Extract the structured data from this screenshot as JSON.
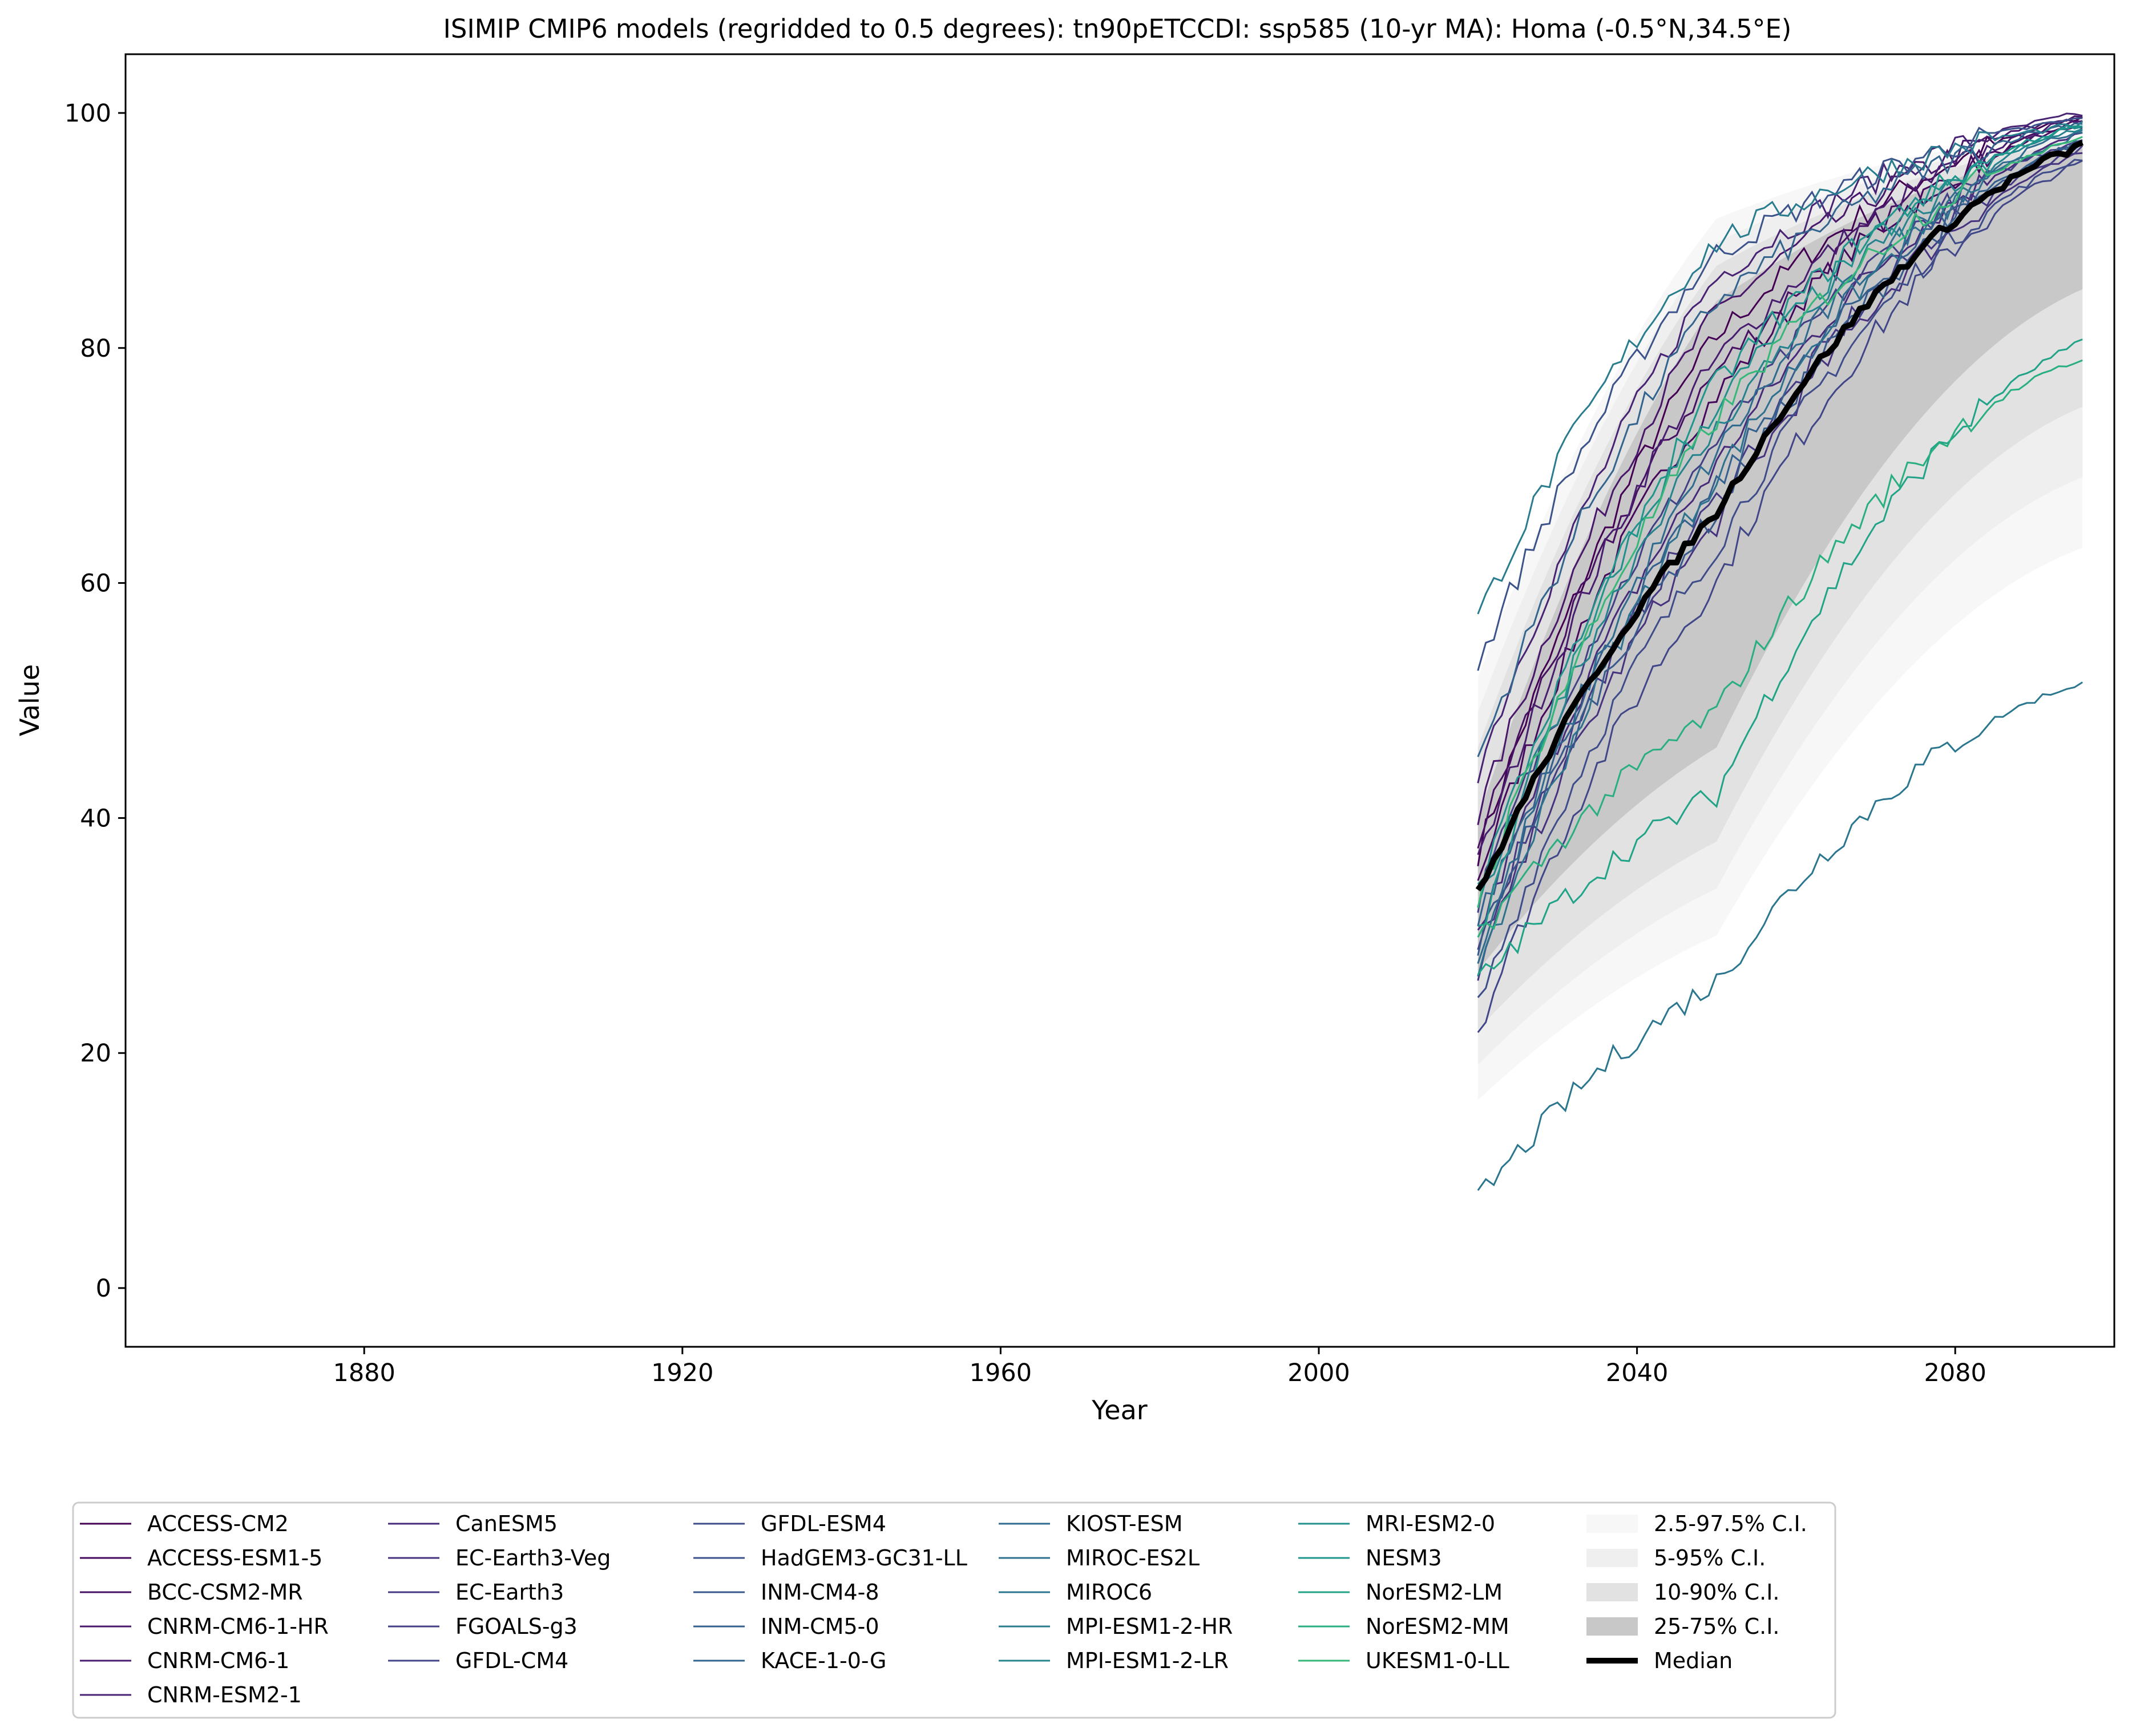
{
  "chart_data": {
    "type": "line",
    "title": "ISIMIP CMIP6 models (regridded to 0.5 degrees): tn90pETCCDI: ssp585 (10-yr MA): Homa (-0.5°N,34.5°E)",
    "xlabel": "Year",
    "ylabel": "Value",
    "xlim": [
      1850,
      2100
    ],
    "ylim": [
      -5,
      105
    ],
    "xticks": [
      1880,
      1920,
      1960,
      2000,
      2040,
      2080
    ],
    "yticks": [
      0,
      20,
      40,
      60,
      80,
      100
    ],
    "grid": false,
    "legend_position": "bottom",
    "x_range": [
      2020,
      2096
    ],
    "models": [
      {
        "name": "ACCESS-CM2",
        "color": "#440154",
        "start": 37,
        "mid": 81,
        "end": 99.6
      },
      {
        "name": "ACCESS-ESM1-5",
        "color": "#46085c",
        "start": 35,
        "mid": 76,
        "end": 99.3
      },
      {
        "name": "BCC-CSM2-MR",
        "color": "#471063",
        "start": 38,
        "mid": 78,
        "end": 99.0
      },
      {
        "name": "CNRM-CM6-1-HR",
        "color": "#481769",
        "start": 40,
        "mid": 83,
        "end": 99.8
      },
      {
        "name": "CNRM-CM6-1",
        "color": "#481d6f",
        "start": 36,
        "mid": 79,
        "end": 99.5
      },
      {
        "name": "CNRM-ESM2-1",
        "color": "#482374",
        "start": 44,
        "mid": 86,
        "end": 99.9
      },
      {
        "name": "CanESM5",
        "color": "#472a7a",
        "start": 30,
        "mid": 70,
        "end": 98.2
      },
      {
        "name": "EC-Earth3-Veg",
        "color": "#46327e",
        "start": 27,
        "mid": 65,
        "end": 96.5
      },
      {
        "name": "EC-Earth3",
        "color": "#443983",
        "start": 29,
        "mid": 67,
        "end": 97.0
      },
      {
        "name": "FGOALS-g3",
        "color": "#423f85",
        "start": 33,
        "mid": 72,
        "end": 97.8
      },
      {
        "name": "GFDL-CM4",
        "color": "#404688",
        "start": 22,
        "mid": 60,
        "end": 95.8
      },
      {
        "name": "GFDL-ESM4",
        "color": "#3e4c8a",
        "start": 24,
        "mid": 63,
        "end": 96.2
      },
      {
        "name": "HadGEM3-GC31-LL",
        "color": "#3b528b",
        "start": 53,
        "mid": 88,
        "end": 99.5
      },
      {
        "name": "INM-CM4-8",
        "color": "#38598c",
        "start": 29,
        "mid": 66,
        "end": 97.4
      },
      {
        "name": "INM-CM5-0",
        "color": "#355f8d",
        "start": 31,
        "mid": 68,
        "end": 97.6
      },
      {
        "name": "KACE-1-0-G",
        "color": "#32648e",
        "start": 45,
        "mid": 84,
        "end": 99.2
      },
      {
        "name": "KIOST-ESM",
        "color": "#2f6b8e",
        "start": 28,
        "mid": 71,
        "end": 98.6
      },
      {
        "name": "MIROC-ES2L",
        "color": "#2d718e",
        "start": 26,
        "mid": 69,
        "end": 98.3
      },
      {
        "name": "MIROC6",
        "color": "#2a768e",
        "start": 7.5,
        "mid": 26,
        "end": 51.5
      },
      {
        "name": "MPI-ESM1-2-HR",
        "color": "#287c8e",
        "start": 57,
        "mid": 89,
        "end": 99.0
      },
      {
        "name": "MPI-ESM1-2-LR",
        "color": "#25838e",
        "start": 32,
        "mid": 73,
        "end": 98.8
      },
      {
        "name": "MRI-ESM2-0",
        "color": "#21908d",
        "start": 34,
        "mid": 75,
        "end": 99.1
      },
      {
        "name": "NESM3",
        "color": "#1f968b",
        "start": 30,
        "mid": 77,
        "end": 98.9
      },
      {
        "name": "NorESM2-LM",
        "color": "#20a386",
        "start": 26,
        "mid": 42,
        "end": 80.5
      },
      {
        "name": "NorESM2-MM",
        "color": "#29af7f",
        "start": 30,
        "mid": 49,
        "end": 79.0
      },
      {
        "name": "UKESM1-0-LL",
        "color": "#35b779",
        "start": 33,
        "mid": 74,
        "end": 98.0
      }
    ],
    "legend_colors": [
      "#440154",
      "#46085c",
      "#471063",
      "#481769",
      "#481d6f",
      "#482374",
      "#472a7a",
      "#46327e",
      "#443983",
      "#423f85",
      "#404688",
      "#3e4c8a",
      "#3b528b",
      "#38598c",
      "#355f8d",
      "#32648e",
      "#2f6b8e",
      "#2d718e",
      "#2a768e",
      "#287c8e",
      "#25838e",
      "#21908d",
      "#1f968b",
      "#20a386",
      "#29af7f",
      "#35b779",
      "#6ece58",
      "#b5de2b",
      "#fde725"
    ],
    "bands": [
      {
        "name": "2.5-97.5% C.I.",
        "color": "#f7f7f7",
        "lower": [
          16,
          30,
          63
        ],
        "upper": [
          52,
          91,
          98.5
        ]
      },
      {
        "name": "5-95% C.I.",
        "color": "#efefef",
        "lower": [
          19,
          34,
          69
        ],
        "upper": [
          49,
          89,
          98.0
        ]
      },
      {
        "name": "10-90% C.I.",
        "color": "#e2e2e2",
        "lower": [
          22,
          38,
          75
        ],
        "upper": [
          46,
          87,
          97.5
        ]
      },
      {
        "name": "25-75% C.I.",
        "color": "#c8c8c8",
        "lower": [
          27,
          46,
          85
        ],
        "upper": [
          40,
          84,
          97.0
        ]
      }
    ],
    "median": {
      "name": "Median",
      "color": "#000000",
      "values_at_2020_2050_2096": [
        33.5,
        66,
        97.2
      ]
    },
    "x_knots": [
      2020,
      2050,
      2096
    ]
  }
}
